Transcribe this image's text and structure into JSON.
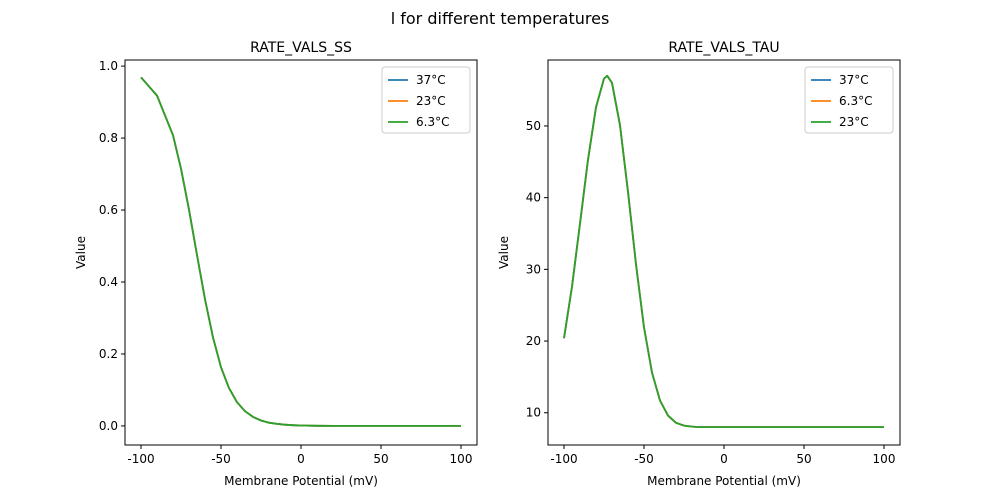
{
  "figure_title": "l for different temperatures",
  "chart_data": [
    {
      "type": "line",
      "title": "RATE_VALS_SS",
      "xlabel": "Membrane Potential (mV)",
      "ylabel": "Value",
      "xlim": [
        -110,
        110
      ],
      "ylim": [
        -0.053,
        1.017
      ],
      "xticks": [
        -100,
        -50,
        0,
        50,
        100
      ],
      "yticks": [
        0.0,
        0.2,
        0.4,
        0.6,
        0.8,
        1.0
      ],
      "ytick_labels": [
        "0.0",
        "0.2",
        "0.4",
        "0.6",
        "0.8",
        "1.0"
      ],
      "legend_placement": "top-right",
      "x": [
        -100,
        -90,
        -80,
        -75,
        -70,
        -65,
        -60,
        -55,
        -50,
        -45,
        -40,
        -35,
        -30,
        -25,
        -20,
        -15,
        -10,
        -5,
        0,
        10,
        20,
        30,
        40,
        50,
        60,
        70,
        80,
        90,
        100
      ],
      "series": [
        {
          "name": "37°C",
          "color": "#1f77b4",
          "values": [
            0.969,
            0.918,
            0.808,
            0.715,
            0.601,
            0.475,
            0.352,
            0.246,
            0.163,
            0.105,
            0.066,
            0.041,
            0.025,
            0.015,
            0.009,
            0.0057,
            0.0035,
            0.0021,
            0.0012,
            0.0004,
            0.0002,
            0.0001,
            0,
            0,
            0,
            0,
            0,
            0,
            0
          ]
        },
        {
          "name": "23°C",
          "color": "#ff7f0e",
          "values": [
            0.969,
            0.918,
            0.808,
            0.715,
            0.601,
            0.475,
            0.352,
            0.246,
            0.163,
            0.105,
            0.066,
            0.041,
            0.025,
            0.015,
            0.009,
            0.0057,
            0.0035,
            0.0021,
            0.0012,
            0.0004,
            0.0002,
            0.0001,
            0,
            0,
            0,
            0,
            0,
            0,
            0
          ]
        },
        {
          "name": "6.3°C",
          "color": "#2ca02c",
          "values": [
            0.969,
            0.918,
            0.808,
            0.715,
            0.601,
            0.475,
            0.352,
            0.246,
            0.163,
            0.105,
            0.066,
            0.041,
            0.025,
            0.015,
            0.009,
            0.0057,
            0.0035,
            0.0021,
            0.0012,
            0.0004,
            0.0002,
            0.0001,
            0,
            0,
            0,
            0,
            0,
            0,
            0
          ]
        }
      ]
    },
    {
      "type": "line",
      "title": "RATE_VALS_TAU",
      "xlabel": "Membrane Potential (mV)",
      "ylabel": "Value",
      "xlim": [
        -110,
        110
      ],
      "ylim": [
        5.5,
        59.2
      ],
      "xticks": [
        -100,
        -50,
        0,
        50,
        100
      ],
      "yticks": [
        10,
        20,
        30,
        40,
        50
      ],
      "ytick_labels": [
        "10",
        "20",
        "30",
        "40",
        "50"
      ],
      "legend_placement": "top-right",
      "x": [
        -100,
        -95,
        -90,
        -85,
        -80,
        -75,
        -73,
        -70,
        -65,
        -60,
        -55,
        -50,
        -45,
        -40,
        -35,
        -30,
        -25,
        -20,
        -15,
        0,
        50,
        100
      ],
      "series": [
        {
          "name": "37°C",
          "color": "#1f77b4",
          "values": [
            20.4,
            27.6,
            36.4,
            45.3,
            52.6,
            56.6,
            57.0,
            56.0,
            50.1,
            40.8,
            30.7,
            21.9,
            15.6,
            11.7,
            9.6,
            8.6,
            8.2,
            8.06,
            8.0,
            8.0,
            8.0,
            8.0
          ]
        },
        {
          "name": "6.3°C",
          "color": "#ff7f0e",
          "values": [
            20.4,
            27.6,
            36.4,
            45.3,
            52.6,
            56.6,
            57.0,
            56.0,
            50.1,
            40.8,
            30.7,
            21.9,
            15.6,
            11.7,
            9.6,
            8.6,
            8.2,
            8.06,
            8.0,
            8.0,
            8.0,
            8.0
          ]
        },
        {
          "name": "23°C",
          "color": "#2ca02c",
          "values": [
            20.4,
            27.6,
            36.4,
            45.3,
            52.6,
            56.6,
            57.0,
            56.0,
            50.1,
            40.8,
            30.7,
            21.9,
            15.6,
            11.7,
            9.6,
            8.6,
            8.2,
            8.06,
            8.0,
            8.0,
            8.0,
            8.0
          ]
        }
      ]
    }
  ]
}
